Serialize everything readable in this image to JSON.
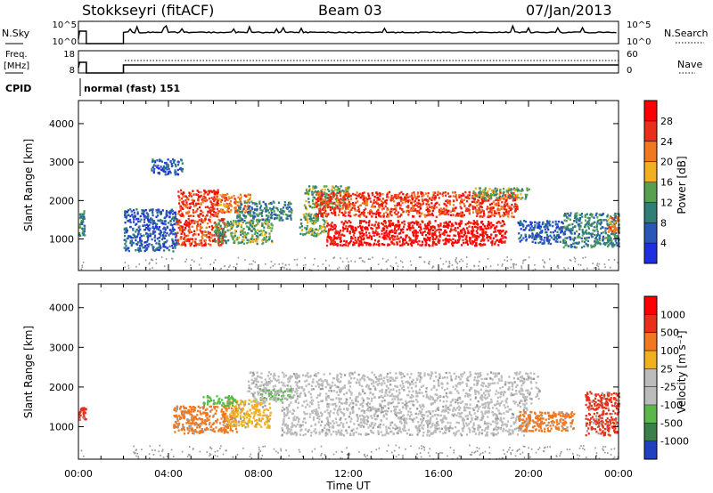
{
  "header": {
    "station": "Stokkseyri (fitACF)",
    "beam": "Beam 03",
    "date": "07/Jan/2013"
  },
  "summary": {
    "nsky_label": "N.Sky",
    "nsky_ticks": [
      "10^5",
      "10^0"
    ],
    "nsearch_label": "N.Search",
    "nsearch_ticks": [
      "10^5",
      "10^0"
    ],
    "freq_label": "Freq.",
    "freq_unit": "[MHz]",
    "freq_ticks": [
      "18",
      "8"
    ],
    "nave_label": "Nave",
    "nave_ticks": [
      "60",
      "0"
    ],
    "cpid_label": "CPID",
    "cpid_text": "normal (fast) 151"
  },
  "chart_data": [
    {
      "type": "heatmap",
      "name": "power-panel",
      "ylabel": "Slant Range [km]",
      "y_ticks": [
        1000,
        2000,
        3000,
        4000
      ],
      "ylim": [
        180,
        4600
      ],
      "xlim_hours": [
        0,
        24
      ],
      "colorbar": {
        "label": "Power [dB]",
        "ticks": [
          "4",
          "8",
          "12",
          "16",
          "20",
          "24",
          "28"
        ],
        "colors": [
          "#1f2fe0",
          "#2a56b8",
          "#2f7e78",
          "#56a050",
          "#f0b020",
          "#f07820",
          "#e83018",
          "#ff0000"
        ]
      },
      "regions": [
        {
          "t": [
            0.0,
            0.25
          ],
          "r": [
            1100,
            1800
          ],
          "level": 2
        },
        {
          "t": [
            2.0,
            4.4
          ],
          "r": [
            700,
            1800
          ],
          "level": 1
        },
        {
          "t": [
            3.2,
            4.6
          ],
          "r": [
            2700,
            3100
          ],
          "level": 1
        },
        {
          "t": [
            4.4,
            6.2
          ],
          "r": [
            1600,
            2300
          ],
          "level": 6
        },
        {
          "t": [
            4.3,
            6.5
          ],
          "r": [
            850,
            1550
          ],
          "level": 6
        },
        {
          "t": [
            6.2,
            7.6
          ],
          "r": [
            1700,
            2200
          ],
          "level": 5
        },
        {
          "t": [
            6.0,
            8.6
          ],
          "r": [
            900,
            1500
          ],
          "level": 3
        },
        {
          "t": [
            7.0,
            9.5
          ],
          "r": [
            1500,
            2000
          ],
          "level": 2
        },
        {
          "t": [
            9.8,
            11.0
          ],
          "r": [
            1100,
            1700
          ],
          "level": 3
        },
        {
          "t": [
            10.0,
            12.0
          ],
          "r": [
            1800,
            2400
          ],
          "level": 3
        },
        {
          "t": [
            10.5,
            19.5
          ],
          "r": [
            1600,
            2250
          ],
          "level": 6
        },
        {
          "t": [
            11.0,
            19.0
          ],
          "r": [
            850,
            1500
          ],
          "level": 7
        },
        {
          "t": [
            17.5,
            20.0
          ],
          "r": [
            2050,
            2350
          ],
          "level": 3
        },
        {
          "t": [
            19.5,
            21.5
          ],
          "r": [
            900,
            1500
          ],
          "level": 1
        },
        {
          "t": [
            21.5,
            24.0
          ],
          "r": [
            800,
            1700
          ],
          "level": 2
        },
        {
          "t": [
            23.5,
            24.0
          ],
          "r": [
            1200,
            1600
          ],
          "level": 5
        }
      ]
    },
    {
      "type": "heatmap",
      "name": "velocity-panel",
      "ylabel": "Slant Range [km]",
      "xlabel": "Time UT",
      "x_ticks": [
        "00:00",
        "04:00",
        "08:00",
        "12:00",
        "16:00",
        "20:00",
        "00:00"
      ],
      "y_ticks": [
        1000,
        2000,
        3000,
        4000
      ],
      "ylim": [
        180,
        4600
      ],
      "xlim_hours": [
        0,
        24
      ],
      "colorbar": {
        "label": "Velocity [m s⁻¹]",
        "ticks": [
          "1000",
          "500",
          "100",
          "25",
          "-25",
          "-100",
          "-500",
          "-1000"
        ],
        "colors": [
          "#2040c0",
          "#3a7f4a",
          "#5ab84a",
          "#bcbcbc",
          "#bcbcbc",
          "#f0b020",
          "#f07820",
          "#e83018",
          "#ff0000"
        ]
      },
      "regions": [
        {
          "t": [
            0.0,
            0.3
          ],
          "r": [
            1200,
            1500
          ],
          "color": "#e83018"
        },
        {
          "t": [
            4.2,
            7.0
          ],
          "r": [
            850,
            1550
          ],
          "color": "#f07820"
        },
        {
          "t": [
            6.5,
            8.5
          ],
          "r": [
            1000,
            1700
          ],
          "color": "#f0b020"
        },
        {
          "t": [
            5.5,
            7.0
          ],
          "r": [
            1550,
            1800
          ],
          "color": "#5ab84a"
        },
        {
          "t": [
            8.0,
            9.5
          ],
          "r": [
            1700,
            2000
          ],
          "color": "#5ab84a"
        },
        {
          "t": [
            7.5,
            20.5
          ],
          "r": [
            1600,
            2400
          ],
          "color": "#bcbcbc"
        },
        {
          "t": [
            9.0,
            20.0
          ],
          "r": [
            800,
            1600
          ],
          "color": "#bcbcbc"
        },
        {
          "t": [
            19.5,
            22.0
          ],
          "r": [
            900,
            1400
          ],
          "color": "#f07820"
        },
        {
          "t": [
            22.5,
            24.0
          ],
          "r": [
            800,
            1900
          ],
          "color": "#e83018"
        }
      ]
    }
  ],
  "colors": {
    "axis": "#000000",
    "noise_gray": "#9a9a9a"
  }
}
